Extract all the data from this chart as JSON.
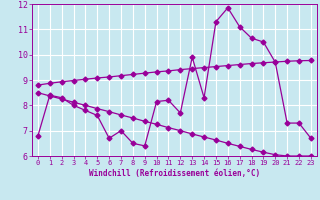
{
  "xlabel": "Windchill (Refroidissement éolien,°C)",
  "x_values": [
    0,
    1,
    2,
    3,
    4,
    5,
    6,
    7,
    8,
    9,
    10,
    11,
    12,
    13,
    14,
    15,
    16,
    17,
    18,
    19,
    20,
    21,
    22,
    23
  ],
  "line1_y": [
    6.8,
    8.4,
    8.3,
    8.0,
    7.8,
    7.6,
    6.7,
    7.0,
    6.5,
    6.4,
    8.15,
    8.2,
    7.7,
    9.9,
    8.3,
    11.3,
    11.85,
    11.1,
    10.65,
    10.5,
    9.7,
    7.3,
    7.3,
    6.7
  ],
  "line2_y": [
    8.8,
    8.87,
    8.93,
    8.98,
    9.03,
    9.08,
    9.12,
    9.17,
    9.22,
    9.27,
    9.32,
    9.36,
    9.41,
    9.45,
    9.49,
    9.53,
    9.57,
    9.61,
    9.65,
    9.68,
    9.71,
    9.74,
    9.76,
    9.77
  ],
  "line3_y": [
    8.5,
    8.37,
    8.25,
    8.12,
    8.0,
    7.87,
    7.75,
    7.62,
    7.5,
    7.37,
    7.25,
    7.12,
    7.0,
    6.87,
    6.75,
    6.63,
    6.5,
    6.38,
    6.26,
    6.15,
    6.05,
    6.0,
    6.0,
    6.0
  ],
  "line_color": "#990099",
  "bg_color": "#c8e8f0",
  "grid_color": "#ffffff",
  "ylim": [
    6,
    12
  ],
  "xlim_min": -0.5,
  "xlim_max": 23.5,
  "yticks": [
    6,
    7,
    8,
    9,
    10,
    11,
    12
  ],
  "xticks": [
    0,
    1,
    2,
    3,
    4,
    5,
    6,
    7,
    8,
    9,
    10,
    11,
    12,
    13,
    14,
    15,
    16,
    17,
    18,
    19,
    20,
    21,
    22,
    23
  ]
}
